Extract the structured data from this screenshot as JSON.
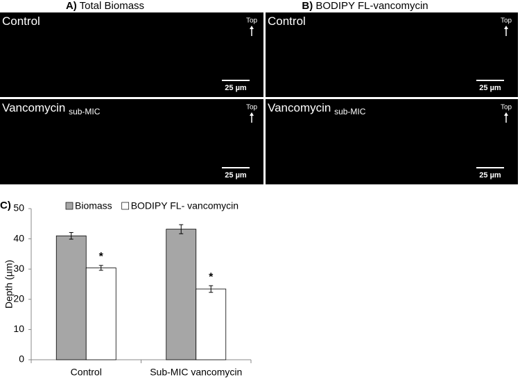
{
  "panels": [
    {
      "letter": "A)",
      "title": "Total Biomass",
      "images": [
        {
          "label": "Control",
          "top": "Top",
          "scale": "25 µm"
        },
        {
          "label": "Vancomycin",
          "label_sub": "sub-MIC",
          "top": "Top",
          "scale": "25 µm"
        }
      ]
    },
    {
      "letter": "B)",
      "title": "BODIPY FL-vancomycin",
      "images": [
        {
          "label": "Control",
          "top": "Top",
          "scale": "25 µm"
        },
        {
          "label": "Vancomycin",
          "label_sub": "sub-MIC",
          "top": "Top",
          "scale": "25 µm"
        }
      ]
    }
  ],
  "chart_data": {
    "type": "bar",
    "letter": "C)",
    "y_label": "Depth (µm)",
    "categories": [
      "Control",
      "Sub-MIC vancomycin"
    ],
    "series": [
      {
        "name": "Biomass",
        "color": "#a6a6a6",
        "values": [
          41,
          43.2
        ],
        "errors": [
          1.1,
          1.5
        ]
      },
      {
        "name": "BODIPY FL- vancomycin",
        "color": "#ffffff",
        "values": [
          30.4,
          23.4
        ],
        "errors": [
          0.8,
          1.1
        ],
        "annotations": [
          "*",
          "*"
        ]
      }
    ],
    "ylim": [
      0,
      50
    ],
    "yticks": [
      0,
      10,
      20,
      30,
      40,
      50
    ],
    "grid": false,
    "legend": "top"
  }
}
